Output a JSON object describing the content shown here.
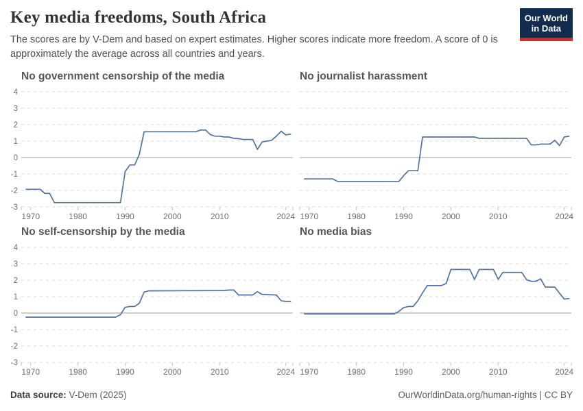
{
  "header": {
    "title": "Key media freedoms, South Africa",
    "subtitle": "The scores are by V-Dem and based on expert estimates. Higher scores indicate more freedom. A score of 0 is approximately the average across all countries and years.",
    "logo_line1": "Our World",
    "logo_line2": "in Data"
  },
  "footer": {
    "source_label": "Data source:",
    "source_value": " V-Dem (2025)",
    "credit": "OurWorldinData.org/human-rights | CC BY"
  },
  "colors": {
    "line": "#4f71a6",
    "grid": "#d9d9d9",
    "zero_line": "#9c9c9c",
    "tick": "#c2c2c2",
    "tick_label": "#6e6e6e",
    "logo_bg": "#132c4e",
    "logo_red": "#d42b20"
  },
  "chart_data": [
    {
      "type": "line",
      "title": "No government censorship of the media",
      "x_range": [
        1968,
        2025.5
      ],
      "y_range": [
        -3,
        4
      ],
      "x_ticks": [
        1970,
        1980,
        1990,
        2000,
        2010,
        2024
      ],
      "y_ticks": [
        4,
        3,
        2,
        1,
        0,
        -1,
        -2,
        -3
      ],
      "show_y_labels": true,
      "grid": true,
      "legend": "none",
      "points": [
        [
          1969,
          -1.93
        ],
        [
          1972,
          -1.93
        ],
        [
          1973,
          -2.18
        ],
        [
          1974,
          -2.18
        ],
        [
          1975,
          -2.74
        ],
        [
          1989,
          -2.74
        ],
        [
          1990,
          -0.85
        ],
        [
          1991,
          -0.45
        ],
        [
          1992,
          -0.45
        ],
        [
          1993,
          0.2
        ],
        [
          1994,
          1.57
        ],
        [
          2005,
          1.57
        ],
        [
          2006,
          1.68
        ],
        [
          2007,
          1.68
        ],
        [
          2008,
          1.4
        ],
        [
          2009,
          1.3
        ],
        [
          2010,
          1.3
        ],
        [
          2011,
          1.25
        ],
        [
          2012,
          1.25
        ],
        [
          2013,
          1.17
        ],
        [
          2014,
          1.15
        ],
        [
          2015,
          1.1
        ],
        [
          2016,
          1.1
        ],
        [
          2017,
          1.1
        ],
        [
          2018,
          0.5
        ],
        [
          2019,
          0.95
        ],
        [
          2020,
          1.0
        ],
        [
          2021,
          1.05
        ],
        [
          2022,
          1.3
        ],
        [
          2023,
          1.6
        ],
        [
          2024,
          1.38
        ],
        [
          2025,
          1.43
        ]
      ]
    },
    {
      "type": "line",
      "title": "No journalist harassment",
      "x_range": [
        1968,
        2025.5
      ],
      "y_range": [
        -3,
        4
      ],
      "x_ticks": [
        1970,
        1980,
        1990,
        2000,
        2010,
        2024
      ],
      "y_ticks": [
        4,
        3,
        2,
        1,
        0,
        -1,
        -2,
        -3
      ],
      "show_y_labels": false,
      "grid": true,
      "legend": "none",
      "points": [
        [
          1969,
          -1.3
        ],
        [
          1975,
          -1.3
        ],
        [
          1976,
          -1.45
        ],
        [
          1989,
          -1.45
        ],
        [
          1990,
          -1.1
        ],
        [
          1991,
          -0.8
        ],
        [
          1993,
          -0.8
        ],
        [
          1994,
          1.25
        ],
        [
          2005,
          1.25
        ],
        [
          2006,
          1.17
        ],
        [
          2016,
          1.17
        ],
        [
          2017,
          0.77
        ],
        [
          2018,
          0.77
        ],
        [
          2019,
          0.82
        ],
        [
          2021,
          0.82
        ],
        [
          2022,
          1.05
        ],
        [
          2023,
          0.73
        ],
        [
          2024,
          1.25
        ],
        [
          2025,
          1.3
        ]
      ]
    },
    {
      "type": "line",
      "title": "No self-censorship by the media",
      "x_range": [
        1968,
        2025.5
      ],
      "y_range": [
        -3,
        4
      ],
      "x_ticks": [
        1970,
        1980,
        1990,
        2000,
        2010,
        2024
      ],
      "y_ticks": [
        4,
        3,
        2,
        1,
        0,
        -1,
        -2,
        -3
      ],
      "show_y_labels": true,
      "grid": true,
      "legend": "none",
      "points": [
        [
          1969,
          -0.25
        ],
        [
          1988,
          -0.25
        ],
        [
          1989,
          -0.1
        ],
        [
          1990,
          0.35
        ],
        [
          1991,
          0.4
        ],
        [
          1992,
          0.4
        ],
        [
          1993,
          0.6
        ],
        [
          1994,
          1.28
        ],
        [
          1995,
          1.35
        ],
        [
          2011,
          1.37
        ],
        [
          2012,
          1.4
        ],
        [
          2013,
          1.4
        ],
        [
          2014,
          1.1
        ],
        [
          2017,
          1.1
        ],
        [
          2018,
          1.3
        ],
        [
          2019,
          1.13
        ],
        [
          2022,
          1.1
        ],
        [
          2023,
          0.75
        ],
        [
          2024,
          0.7
        ],
        [
          2025,
          0.7
        ]
      ]
    },
    {
      "type": "line",
      "title": "No media bias",
      "x_range": [
        1968,
        2025.5
      ],
      "y_range": [
        -3,
        4
      ],
      "x_ticks": [
        1970,
        1980,
        1990,
        2000,
        2010,
        2024
      ],
      "y_ticks": [
        4,
        3,
        2,
        1,
        0,
        -1,
        -2,
        -3
      ],
      "show_y_labels": false,
      "grid": true,
      "legend": "none",
      "points": [
        [
          1969,
          -0.06
        ],
        [
          1988,
          -0.06
        ],
        [
          1989,
          0.1
        ],
        [
          1990,
          0.33
        ],
        [
          1991,
          0.4
        ],
        [
          1992,
          0.4
        ],
        [
          1993,
          0.75
        ],
        [
          1994,
          1.23
        ],
        [
          1995,
          1.67
        ],
        [
          1998,
          1.67
        ],
        [
          1999,
          1.8
        ],
        [
          2000,
          2.65
        ],
        [
          2004,
          2.65
        ],
        [
          2005,
          2.05
        ],
        [
          2006,
          2.65
        ],
        [
          2009,
          2.65
        ],
        [
          2010,
          2.05
        ],
        [
          2011,
          2.47
        ],
        [
          2015,
          2.47
        ],
        [
          2016,
          2.03
        ],
        [
          2017,
          1.93
        ],
        [
          2018,
          1.93
        ],
        [
          2019,
          2.08
        ],
        [
          2020,
          1.58
        ],
        [
          2022,
          1.58
        ],
        [
          2023,
          1.2
        ],
        [
          2024,
          0.85
        ],
        [
          2025,
          0.88
        ]
      ]
    }
  ]
}
